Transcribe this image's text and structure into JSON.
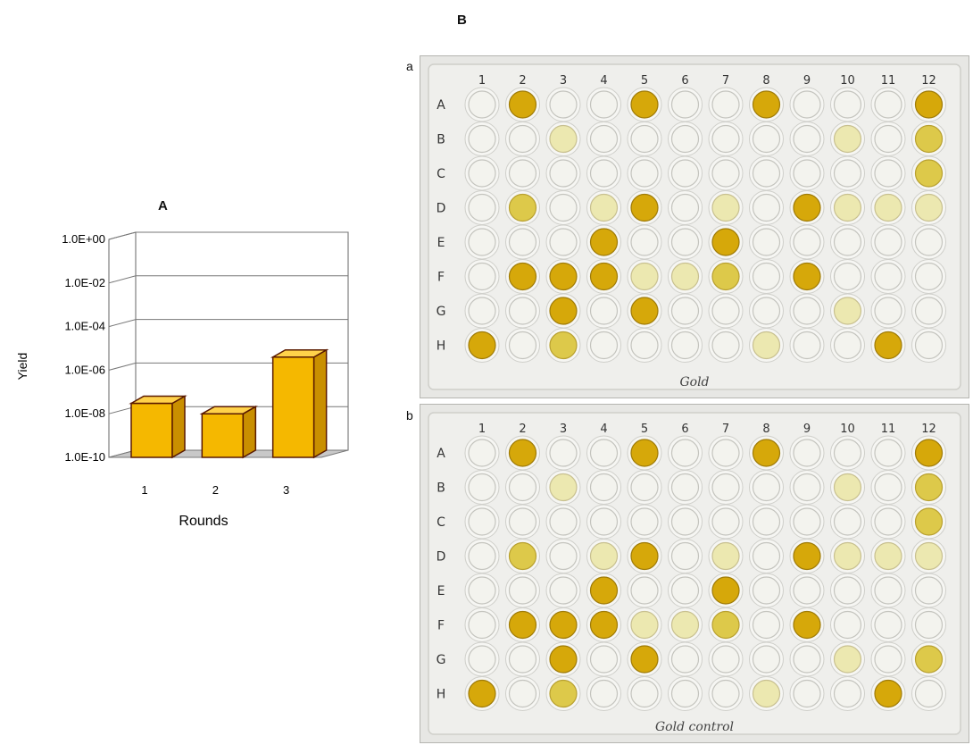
{
  "panels": {
    "A": "A",
    "B": "B",
    "a": "a",
    "b": "b"
  },
  "chart_data": {
    "type": "bar",
    "categories": [
      "1",
      "2",
      "3"
    ],
    "values": [
      3e-08,
      1e-08,
      4e-06
    ],
    "log_exponents": [
      -7.52,
      -8.0,
      -5.4
    ],
    "title": "A",
    "xlabel": "Rounds",
    "ylabel": "Yield",
    "yticks": [
      "1.0E-10",
      "1.0E-08",
      "1.0E-06",
      "1.0E-04",
      "1.0E-02",
      "1.0E+00"
    ],
    "ylim_exponent": [
      -10,
      0
    ],
    "scale": "log",
    "grid": true,
    "bar_color": "#f5b800",
    "bar_edge_color": "#5a1a00"
  },
  "plates": [
    {
      "id": "a",
      "caption": "Gold",
      "columns": [
        "1",
        "2",
        "3",
        "4",
        "5",
        "6",
        "7",
        "8",
        "9",
        "10",
        "11",
        "12"
      ],
      "rows": [
        "A",
        "B",
        "C",
        "D",
        "E",
        "F",
        "G",
        "H"
      ],
      "wells": [
        [
          0,
          3,
          0,
          0,
          3,
          0,
          0,
          3,
          0,
          0,
          0,
          3
        ],
        [
          0,
          0,
          1,
          0,
          0,
          0,
          0,
          0,
          0,
          1,
          0,
          2
        ],
        [
          0,
          0,
          0,
          0,
          0,
          0,
          0,
          0,
          0,
          0,
          0,
          2
        ],
        [
          0,
          2,
          0,
          1,
          3,
          0,
          1,
          0,
          3,
          1,
          1,
          1
        ],
        [
          0,
          0,
          0,
          3,
          0,
          0,
          3,
          0,
          0,
          0,
          0,
          0
        ],
        [
          0,
          3,
          3,
          3,
          1,
          1,
          2,
          0,
          3,
          0,
          0,
          0
        ],
        [
          0,
          0,
          3,
          0,
          3,
          0,
          0,
          0,
          0,
          1,
          0,
          0
        ],
        [
          3,
          0,
          2,
          0,
          0,
          0,
          0,
          1,
          0,
          0,
          3,
          0
        ]
      ]
    },
    {
      "id": "b",
      "caption": "Gold control",
      "columns": [
        "1",
        "2",
        "3",
        "4",
        "5",
        "6",
        "7",
        "8",
        "9",
        "10",
        "11",
        "12"
      ],
      "rows": [
        "A",
        "B",
        "C",
        "D",
        "E",
        "F",
        "G",
        "H"
      ],
      "wells": [
        [
          0,
          3,
          0,
          0,
          3,
          0,
          0,
          3,
          0,
          0,
          0,
          3
        ],
        [
          0,
          0,
          1,
          0,
          0,
          0,
          0,
          0,
          0,
          1,
          0,
          2
        ],
        [
          0,
          0,
          0,
          0,
          0,
          0,
          0,
          0,
          0,
          0,
          0,
          2
        ],
        [
          0,
          2,
          0,
          1,
          3,
          0,
          1,
          0,
          3,
          1,
          1,
          1
        ],
        [
          0,
          0,
          0,
          3,
          0,
          0,
          3,
          0,
          0,
          0,
          0,
          0
        ],
        [
          0,
          3,
          3,
          3,
          1,
          1,
          2,
          0,
          3,
          0,
          0,
          0
        ],
        [
          0,
          0,
          3,
          0,
          3,
          0,
          0,
          0,
          0,
          1,
          0,
          2
        ],
        [
          3,
          0,
          2,
          0,
          0,
          0,
          0,
          1,
          0,
          0,
          3,
          0
        ]
      ]
    }
  ]
}
